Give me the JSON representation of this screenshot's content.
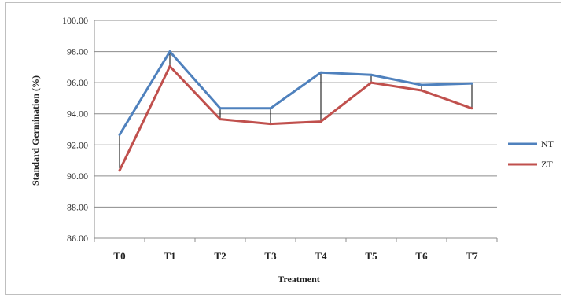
{
  "chart_data": {
    "type": "line",
    "categories": [
      "T0",
      "T1",
      "T2",
      "T3",
      "T4",
      "T5",
      "T6",
      "T7"
    ],
    "series": [
      {
        "name": "NT",
        "color": "#4f81bd",
        "values": [
          92.65,
          98.0,
          94.35,
          94.35,
          96.65,
          96.5,
          95.85,
          95.95
        ]
      },
      {
        "name": "ZT",
        "color": "#c0504d",
        "values": [
          90.35,
          97.05,
          93.65,
          93.35,
          93.5,
          96.0,
          95.5,
          94.35
        ]
      }
    ],
    "xlabel": "Treatment",
    "ylabel": "Standard Germination (%)",
    "ylim": [
      86,
      100
    ],
    "yticks": [
      86,
      88,
      90,
      92,
      94,
      96,
      98,
      100
    ],
    "ytick_labels": [
      "86.00",
      "88.00",
      "90.00",
      "92.00",
      "94.00",
      "96.00",
      "98.00",
      "100.00"
    ],
    "grid": true,
    "legend": "right",
    "drop_lines": true
  }
}
